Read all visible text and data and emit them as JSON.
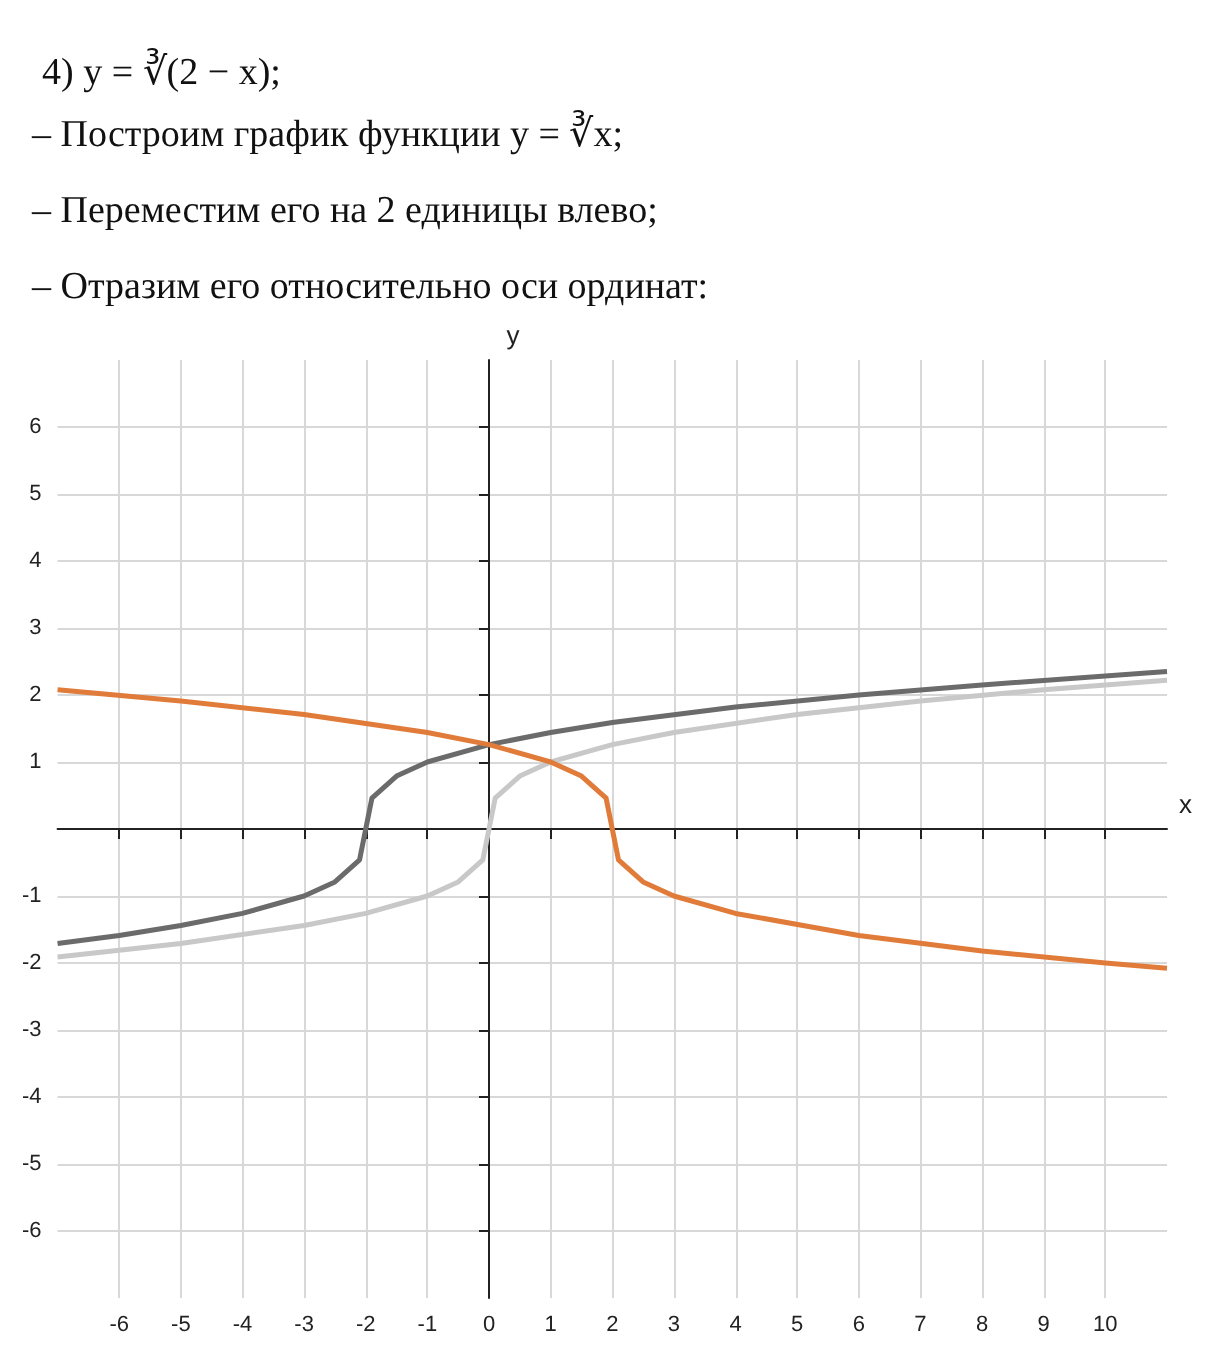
{
  "chart_data": {
    "type": "line",
    "title": "4) y = ∛(2 − x);",
    "annotations": [
      "– Построим график функции y = ∛x;",
      "– Переместим его на 2 единицы влево;",
      "– Отразим его относительно оси ординат:"
    ],
    "xlabel": "x",
    "ylabel": "y",
    "series": [
      {
        "color": "#6b6b6b",
        "x": [
          -7,
          -6,
          -5,
          -4,
          -3,
          -2.5,
          -2.1,
          -2,
          -1.9,
          -1.5,
          -1,
          0,
          1,
          2,
          4,
          6,
          8,
          11
        ],
        "values": [
          -1.71,
          -1.59,
          -1.44,
          -1.26,
          -1,
          -0.79,
          -0.46,
          0,
          0.46,
          0.79,
          1,
          1.26,
          1.44,
          1.59,
          1.82,
          2,
          2.15,
          2.35
        ]
      },
      {
        "color": "#c8c8c8",
        "x": [
          -7,
          -5,
          -3,
          -2,
          -1,
          -0.5,
          -0.1,
          0,
          0.1,
          0.5,
          1,
          2,
          3,
          5,
          7,
          9,
          11
        ],
        "values": [
          -1.91,
          -1.71,
          -1.44,
          -1.26,
          -1,
          -0.79,
          -0.46,
          0,
          0.46,
          0.79,
          1,
          1.26,
          1.44,
          1.71,
          1.91,
          2.08,
          2.22
        ]
      },
      {
        "color": "#e07b39",
        "x": [
          -7,
          -5,
          -3,
          -1,
          0,
          1,
          1.5,
          1.9,
          2,
          2.1,
          2.5,
          3,
          4,
          6,
          8,
          10,
          11
        ],
        "values": [
          2.08,
          1.91,
          1.71,
          1.44,
          1.26,
          1,
          0.79,
          0.46,
          0,
          -0.46,
          -0.79,
          -1,
          -1.26,
          -1.59,
          -1.82,
          -2,
          -2.08
        ]
      }
    ],
    "xlim": [
      -7,
      11
    ],
    "ylim": [
      -7,
      7
    ],
    "xticks": [
      -6,
      -5,
      -4,
      -3,
      -2,
      -1,
      0,
      1,
      2,
      3,
      4,
      5,
      6,
      7,
      8,
      9,
      10
    ],
    "yticks": [
      -6,
      -5,
      -4,
      -3,
      -2,
      -1,
      {
        "value": 0,
        "label": null
      },
      1,
      2,
      3,
      4,
      5,
      6
    ],
    "grid": true
  }
}
